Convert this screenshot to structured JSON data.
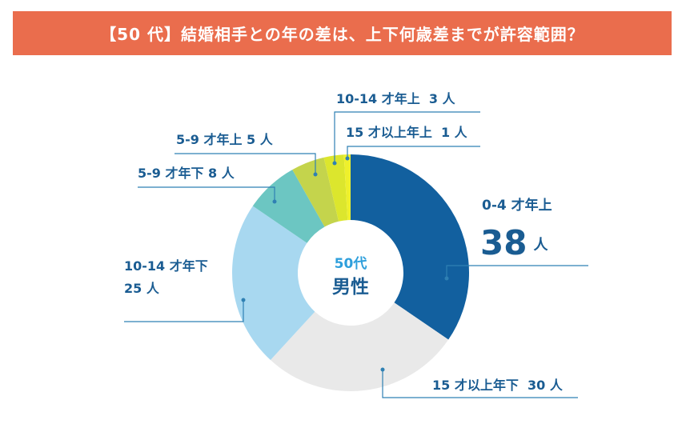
{
  "title": "【50 代】結婚相手との年の差は、上下何歳差までが許容範囲？",
  "chart_data": {
    "type": "pie",
    "variant": "donut",
    "title": "【50 代】結婚相手との年の差は、上下何歳差までが許容範囲？",
    "center_label": {
      "line1": "50代",
      "line2": "男性"
    },
    "slices": [
      {
        "label": "0-4 才年上",
        "value": 38,
        "display": "38",
        "unit": "人",
        "color": "#12609f"
      },
      {
        "label": "15 才以上年下",
        "value": 30,
        "display": "30",
        "unit": "人",
        "color": "#e9e9e9"
      },
      {
        "label": "10-14 才年下",
        "value": 25,
        "display": "25",
        "unit": "人",
        "color": "#a8d8f0"
      },
      {
        "label": "5-9 才年下",
        "value": 8,
        "display": "8",
        "unit": "人",
        "color": "#6cc6c2"
      },
      {
        "label": "5-9 才年上",
        "value": 5,
        "display": "5",
        "unit": "人",
        "color": "#c4d44c"
      },
      {
        "label": "10-14 才年上",
        "value": 3,
        "display": "3",
        "unit": "人",
        "color": "#dce62d"
      },
      {
        "label": "15 才以上年上",
        "value": 1,
        "display": "1",
        "unit": "人",
        "color": "#eef02c"
      }
    ]
  }
}
